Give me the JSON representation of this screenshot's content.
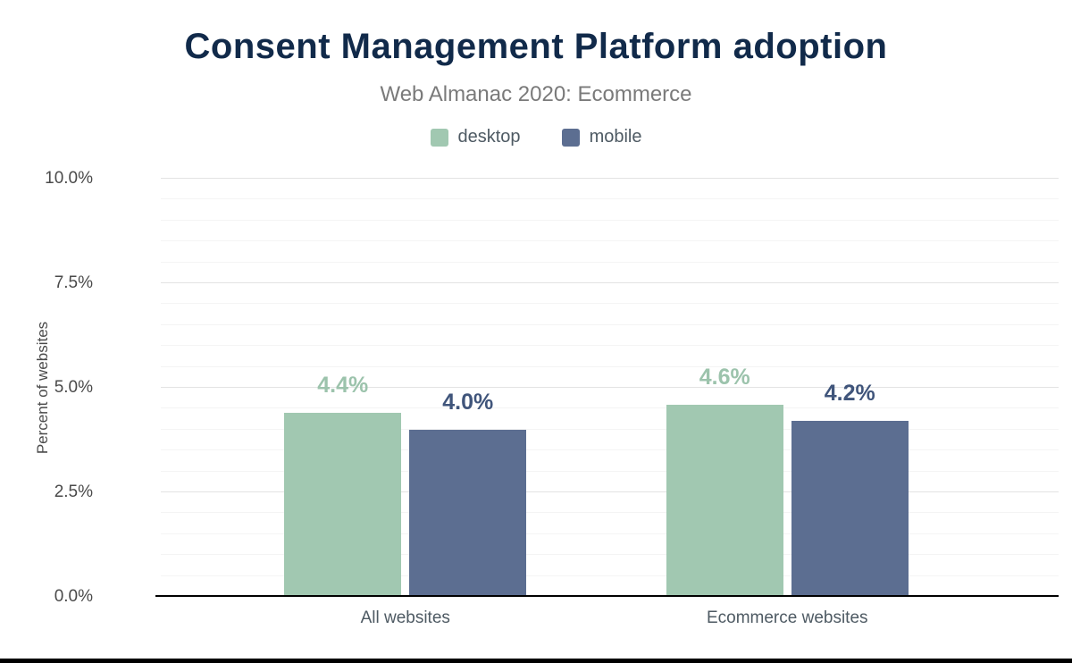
{
  "chart_data": {
    "type": "bar",
    "title": "Consent Management Platform adoption",
    "subtitle": "Web Almanac 2020: Ecommerce",
    "categories": [
      "All websites",
      "Ecommerce websites"
    ],
    "series": [
      {
        "name": "desktop",
        "color": "#a1c8b1",
        "label_color": "#9cc3ac",
        "values": [
          4.4,
          4.6
        ]
      },
      {
        "name": "mobile",
        "color": "#5c6e91",
        "label_color": "#40557b",
        "values": [
          4.0,
          4.2
        ]
      }
    ],
    "xlabel": "",
    "ylabel": "Percent of websites",
    "ylim": [
      0,
      10
    ],
    "yticks": [
      0,
      2.5,
      5,
      7.5,
      10
    ],
    "ytick_labels": [
      "0.0%",
      "2.5%",
      "5.0%",
      "7.5%",
      "10.0%"
    ],
    "minor_gridline_step": 0.5,
    "grid": true,
    "legend_position": "top",
    "value_suffix": "%"
  },
  "colors": {
    "title_color": "#112a4a",
    "subtitle_color": "#7a7a7a",
    "axis_text": "#4a4a4a",
    "category_text": "#4e5a63",
    "axis_line": "#000000",
    "major_gridline": "#e3e3e3",
    "minor_gridline": "#f4f4f4"
  }
}
